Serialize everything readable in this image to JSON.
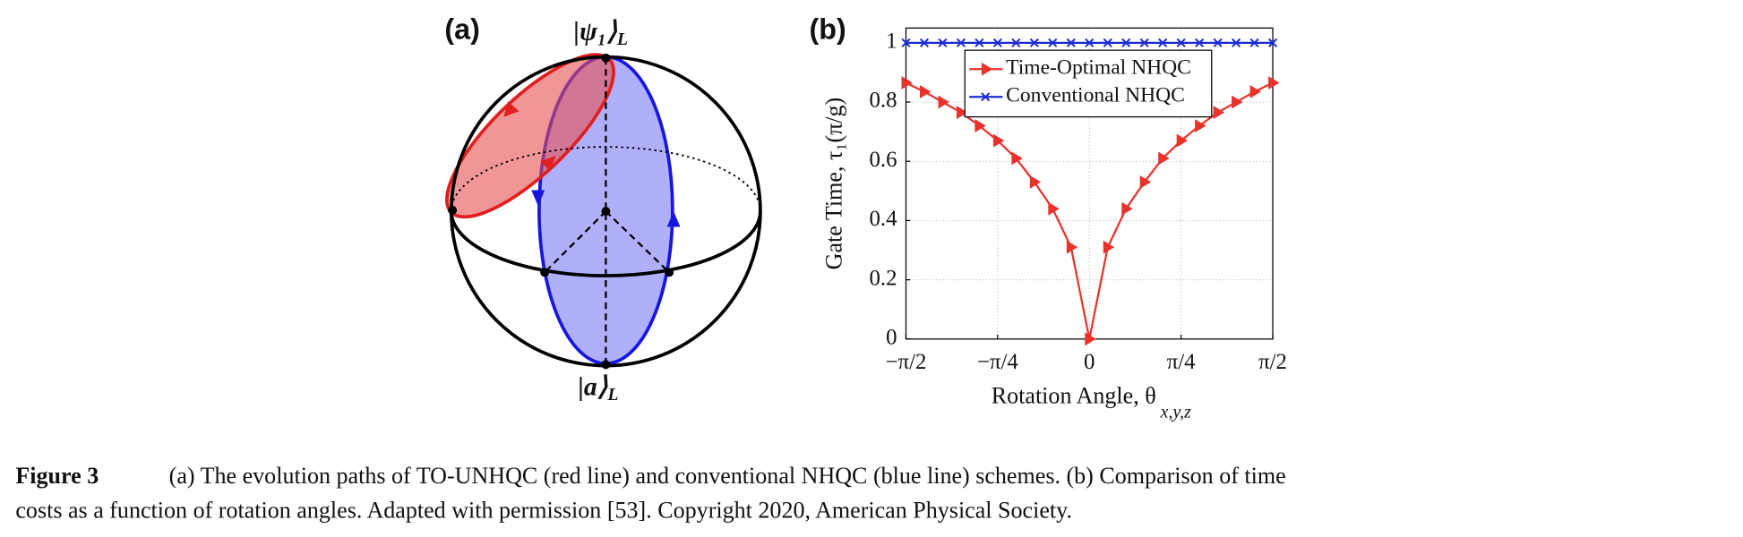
{
  "panel_a": {
    "label": "(a)",
    "top_ket": "|ψ₁⟩",
    "top_sub": "L",
    "bottom_ket": "|a⟩",
    "bottom_sub": "L"
  },
  "chart_data": {
    "type": "line",
    "label": "(b)",
    "ylabel": "Gate Time, τ₁(π/g)",
    "xlabel": "Rotation Angle, θ",
    "xlabel_subscript": "x,y,z",
    "x": [
      -1.5708,
      -1.4137,
      -1.2566,
      -1.0996,
      -0.9425,
      -0.7854,
      -0.6283,
      -0.4712,
      -0.3142,
      -0.1571,
      0,
      0.1571,
      0.3142,
      0.4712,
      0.6283,
      0.7854,
      0.9425,
      1.0996,
      1.2566,
      1.4137,
      1.5708
    ],
    "series": [
      {
        "name": "Time-Optimal NHQC",
        "color": "#e8322c",
        "marker": "triangle-right",
        "values": [
          0.865,
          0.835,
          0.8,
          0.765,
          0.72,
          0.67,
          0.61,
          0.53,
          0.44,
          0.31,
          0,
          0.31,
          0.44,
          0.53,
          0.61,
          0.67,
          0.72,
          0.765,
          0.8,
          0.835,
          0.865
        ]
      },
      {
        "name": "Conventional NHQC",
        "color": "#1d2bd6",
        "marker": "x",
        "values": [
          1,
          1,
          1,
          1,
          1,
          1,
          1,
          1,
          1,
          1,
          1,
          1,
          1,
          1,
          1,
          1,
          1,
          1,
          1,
          1,
          1
        ]
      }
    ],
    "xlim": [
      -1.5708,
      1.5708
    ],
    "xticks": [
      {
        "value": -1.5708,
        "label": "−π/2"
      },
      {
        "value": -0.7854,
        "label": "−π/4"
      },
      0,
      {
        "value": 0.7854,
        "label": "π/4"
      },
      {
        "value": 1.5708,
        "label": "π/2"
      }
    ],
    "ylim": [
      0,
      1.05
    ],
    "yticks": [
      0,
      0.2,
      0.4,
      0.6,
      0.8,
      1
    ],
    "grid": true,
    "legend": "top"
  },
  "caption": {
    "label": "Figure 3",
    "line1": "(a) The evolution paths of TO-UNHQC (red line) and conventional NHQC (blue line) schemes. (b) Comparison of time",
    "line2": "costs as a function of rotation angles. Adapted with permission [53]. Copyright 2020, American Physical Society."
  }
}
